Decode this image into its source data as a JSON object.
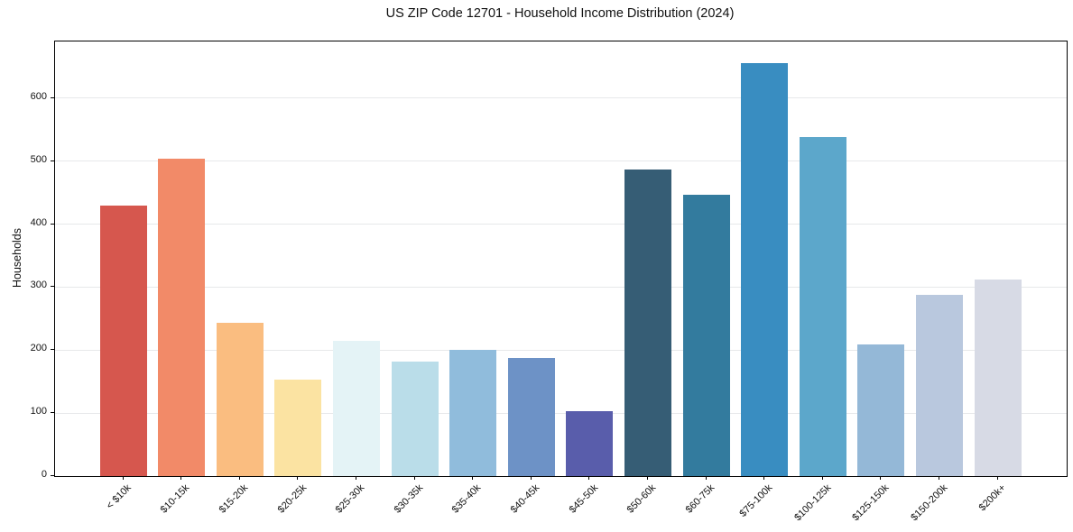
{
  "chart_data": {
    "type": "bar",
    "title": "US ZIP Code 12701 - Household Income Distribution (2024)",
    "xlabel": "",
    "ylabel": "Households",
    "categories": [
      "< $10k",
      "$10-15k",
      "$15-20k",
      "$20-25k",
      "$25-30k",
      "$30-35k",
      "$35-40k",
      "$40-45k",
      "$45-50k",
      "$50-60k",
      "$60-75k",
      "$75-100k",
      "$100-125k",
      "$125-150k",
      "$150-200k",
      "$200k+"
    ],
    "values": [
      430,
      504,
      244,
      153,
      215,
      182,
      201,
      187,
      103,
      487,
      447,
      655,
      538,
      209,
      288,
      312
    ],
    "bar_colors": [
      "#d6574e",
      "#f28a68",
      "#fabd80",
      "#fbe3a2",
      "#e4f3f6",
      "#badde9",
      "#90bcdc",
      "#6d92c6",
      "#595dab",
      "#365d75",
      "#337b9e",
      "#398dc1",
      "#5ca7cb",
      "#94b8d7",
      "#b9c8de",
      "#d7dae5"
    ],
    "yticks": [
      0,
      100,
      200,
      300,
      400,
      500,
      600
    ],
    "ylim": [
      0,
      690
    ],
    "grid": true,
    "legend_position": "none",
    "axis_color": "#000000",
    "grid_color": "#e7e8ea"
  }
}
